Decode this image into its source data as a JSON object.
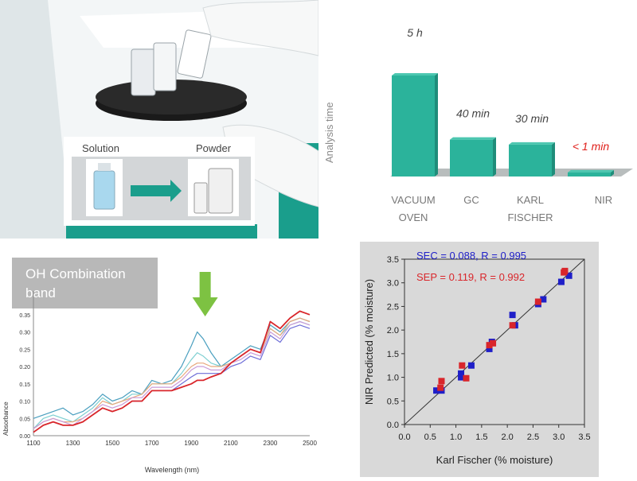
{
  "photo": {
    "inset_solution_label": "Solution",
    "inset_powder_label": "Powder",
    "colors": {
      "instrument_teal": "#1a9e8c",
      "instrument_body": "#e8eef0",
      "arrow": "#1a9e8c"
    }
  },
  "chart_data": [
    {
      "type": "bar",
      "categories": [
        "VACUUM OVEN",
        "GC",
        "KARL FISCHER",
        "NIR"
      ],
      "category_lines": [
        [
          "VACUUM",
          "OVEN"
        ],
        [
          "GC"
        ],
        [
          "KARL",
          "FISCHER"
        ],
        [
          "NIR"
        ]
      ],
      "values_minutes": [
        300,
        40,
        30,
        0.5
      ],
      "value_labels": [
        "5 h",
        "40 min",
        "30 min",
        "< 1 min"
      ],
      "value_label_colors": [
        "#444444",
        "#444444",
        "#444444",
        "#e0201b"
      ],
      "ylabel": "Analysis time",
      "bar_color": "#2bb39b",
      "floor_color": "#b8bdbd"
    },
    {
      "type": "line",
      "title": "OH Combination band",
      "xlabel": "Wavelength (nm)",
      "ylabel": "Absorbance",
      "xlim": [
        1100,
        2500
      ],
      "ylim": [
        0,
        0.4
      ],
      "x_ticks": [
        1100,
        1300,
        1500,
        1700,
        1900,
        2100,
        2300,
        2500
      ],
      "y_ticks": [
        "0.00",
        "0.05",
        "0.10",
        "0.15",
        "0.20",
        "0.25",
        "0.30",
        "0.35"
      ],
      "highlight_band": [
        1880,
        2060
      ],
      "arrow_color": "#7dc242",
      "x": [
        1100,
        1150,
        1200,
        1250,
        1300,
        1350,
        1400,
        1450,
        1500,
        1550,
        1600,
        1650,
        1700,
        1750,
        1800,
        1850,
        1900,
        1930,
        1960,
        2000,
        2050,
        2100,
        2150,
        2200,
        2250,
        2300,
        2350,
        2400,
        2450,
        2500
      ],
      "series": [
        {
          "color": "#4a9fbf",
          "values": [
            0.05,
            0.06,
            0.07,
            0.08,
            0.06,
            0.07,
            0.09,
            0.12,
            0.1,
            0.11,
            0.13,
            0.12,
            0.16,
            0.15,
            0.16,
            0.2,
            0.26,
            0.3,
            0.28,
            0.24,
            0.2,
            0.22,
            0.24,
            0.26,
            0.25,
            0.32,
            0.3,
            0.33,
            0.34,
            0.33
          ]
        },
        {
          "color": "#7ecfd1",
          "values": [
            0.02,
            0.05,
            0.06,
            0.05,
            0.04,
            0.06,
            0.08,
            0.11,
            0.09,
            0.1,
            0.12,
            0.12,
            0.15,
            0.15,
            0.15,
            0.18,
            0.22,
            0.24,
            0.23,
            0.21,
            0.2,
            0.21,
            0.23,
            0.25,
            0.24,
            0.31,
            0.29,
            0.32,
            0.33,
            0.32
          ]
        },
        {
          "color": "#e8a87c",
          "values": [
            0.02,
            0.04,
            0.05,
            0.04,
            0.04,
            0.05,
            0.07,
            0.1,
            0.09,
            0.1,
            0.11,
            0.12,
            0.15,
            0.15,
            0.15,
            0.17,
            0.2,
            0.21,
            0.21,
            0.2,
            0.2,
            0.21,
            0.23,
            0.25,
            0.24,
            0.31,
            0.29,
            0.33,
            0.34,
            0.33
          ]
        },
        {
          "color": "#c99bd8",
          "values": [
            0.02,
            0.04,
            0.05,
            0.04,
            0.03,
            0.05,
            0.07,
            0.09,
            0.08,
            0.09,
            0.11,
            0.11,
            0.14,
            0.14,
            0.14,
            0.16,
            0.19,
            0.2,
            0.2,
            0.19,
            0.19,
            0.21,
            0.22,
            0.24,
            0.23,
            0.3,
            0.28,
            0.32,
            0.33,
            0.32
          ]
        },
        {
          "color": "#6f6fd8",
          "values": [
            0.01,
            0.03,
            0.04,
            0.03,
            0.03,
            0.04,
            0.06,
            0.08,
            0.07,
            0.08,
            0.1,
            0.1,
            0.13,
            0.13,
            0.13,
            0.15,
            0.17,
            0.18,
            0.18,
            0.18,
            0.18,
            0.2,
            0.21,
            0.23,
            0.22,
            0.29,
            0.27,
            0.31,
            0.32,
            0.31
          ]
        },
        {
          "color": "#d9262b",
          "values": [
            0.01,
            0.03,
            0.04,
            0.03,
            0.03,
            0.04,
            0.06,
            0.08,
            0.07,
            0.08,
            0.1,
            0.1,
            0.13,
            0.13,
            0.13,
            0.14,
            0.15,
            0.16,
            0.16,
            0.17,
            0.18,
            0.21,
            0.23,
            0.25,
            0.24,
            0.33,
            0.31,
            0.34,
            0.36,
            0.35
          ]
        }
      ]
    },
    {
      "type": "scatter",
      "xlabel": "Karl Fischer (% moisture)",
      "ylabel": "NIR Predicted (% moisture)",
      "xlim": [
        0,
        3.5
      ],
      "ylim": [
        0,
        3.5
      ],
      "x_ticks": [
        "0.0",
        "0.5",
        "1.0",
        "1.5",
        "2.0",
        "2.5",
        "3.0",
        "3.5"
      ],
      "y_ticks": [
        "0.0",
        "0.5",
        "1.0",
        "1.5",
        "2.0",
        "2.5",
        "3.0",
        "3.5"
      ],
      "grid": false,
      "reference_line": [
        [
          0,
          0
        ],
        [
          3.5,
          3.5
        ]
      ],
      "annotations": [
        {
          "text": "SEC = 0.088, R = 0.995",
          "color": "#1f1fc8"
        },
        {
          "text": "SEP = 0.119, R = 0.992",
          "color": "#d9262b"
        }
      ],
      "series": [
        {
          "color": "#1f1fc8",
          "x": [
            0.62,
            0.72,
            1.1,
            1.1,
            1.3,
            1.65,
            1.7,
            2.1,
            2.15,
            2.6,
            2.7,
            3.05,
            3.2
          ],
          "y": [
            0.72,
            0.72,
            1.0,
            1.08,
            1.25,
            1.6,
            1.75,
            2.32,
            2.1,
            2.55,
            2.65,
            3.02,
            3.15
          ]
        },
        {
          "color": "#d9262b",
          "x": [
            0.7,
            0.72,
            1.12,
            1.2,
            1.65,
            1.72,
            2.1,
            2.6,
            3.1,
            3.12
          ],
          "y": [
            0.78,
            0.92,
            1.25,
            0.98,
            1.68,
            1.72,
            2.1,
            2.6,
            3.22,
            3.25
          ]
        }
      ]
    }
  ]
}
